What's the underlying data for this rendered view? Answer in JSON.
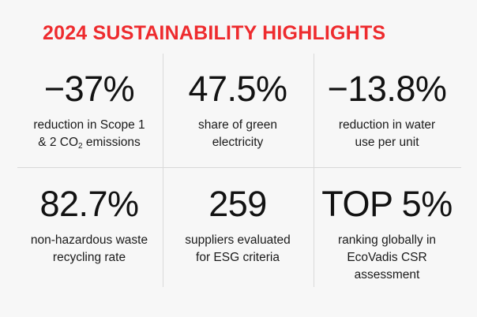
{
  "title": "2024 SUSTAINABILITY HIGHLIGHTS",
  "colors": {
    "accent": "#ee2b2e",
    "text": "#141414",
    "background": "#f7f7f7",
    "divider": "#d9d9d9"
  },
  "stats": [
    {
      "value": "−37%",
      "label_lines": [
        "reduction in Scope 1",
        "& 2 CO",
        "2",
        " emissions"
      ]
    },
    {
      "value": "47.5%",
      "label_lines": [
        "share of green",
        "electricity"
      ]
    },
    {
      "value": "−13.8%",
      "label_lines": [
        "reduction in water",
        "use per unit"
      ]
    },
    {
      "value": "82.7%",
      "label_lines": [
        "non-hazardous waste",
        "recycling rate"
      ]
    },
    {
      "value": "259",
      "label_lines": [
        "suppliers evaluated",
        "for ESG criteria"
      ]
    },
    {
      "value": "TOP 5%",
      "label_lines": [
        "ranking globally in",
        "EcoVadis CSR",
        "assessment"
      ]
    }
  ]
}
